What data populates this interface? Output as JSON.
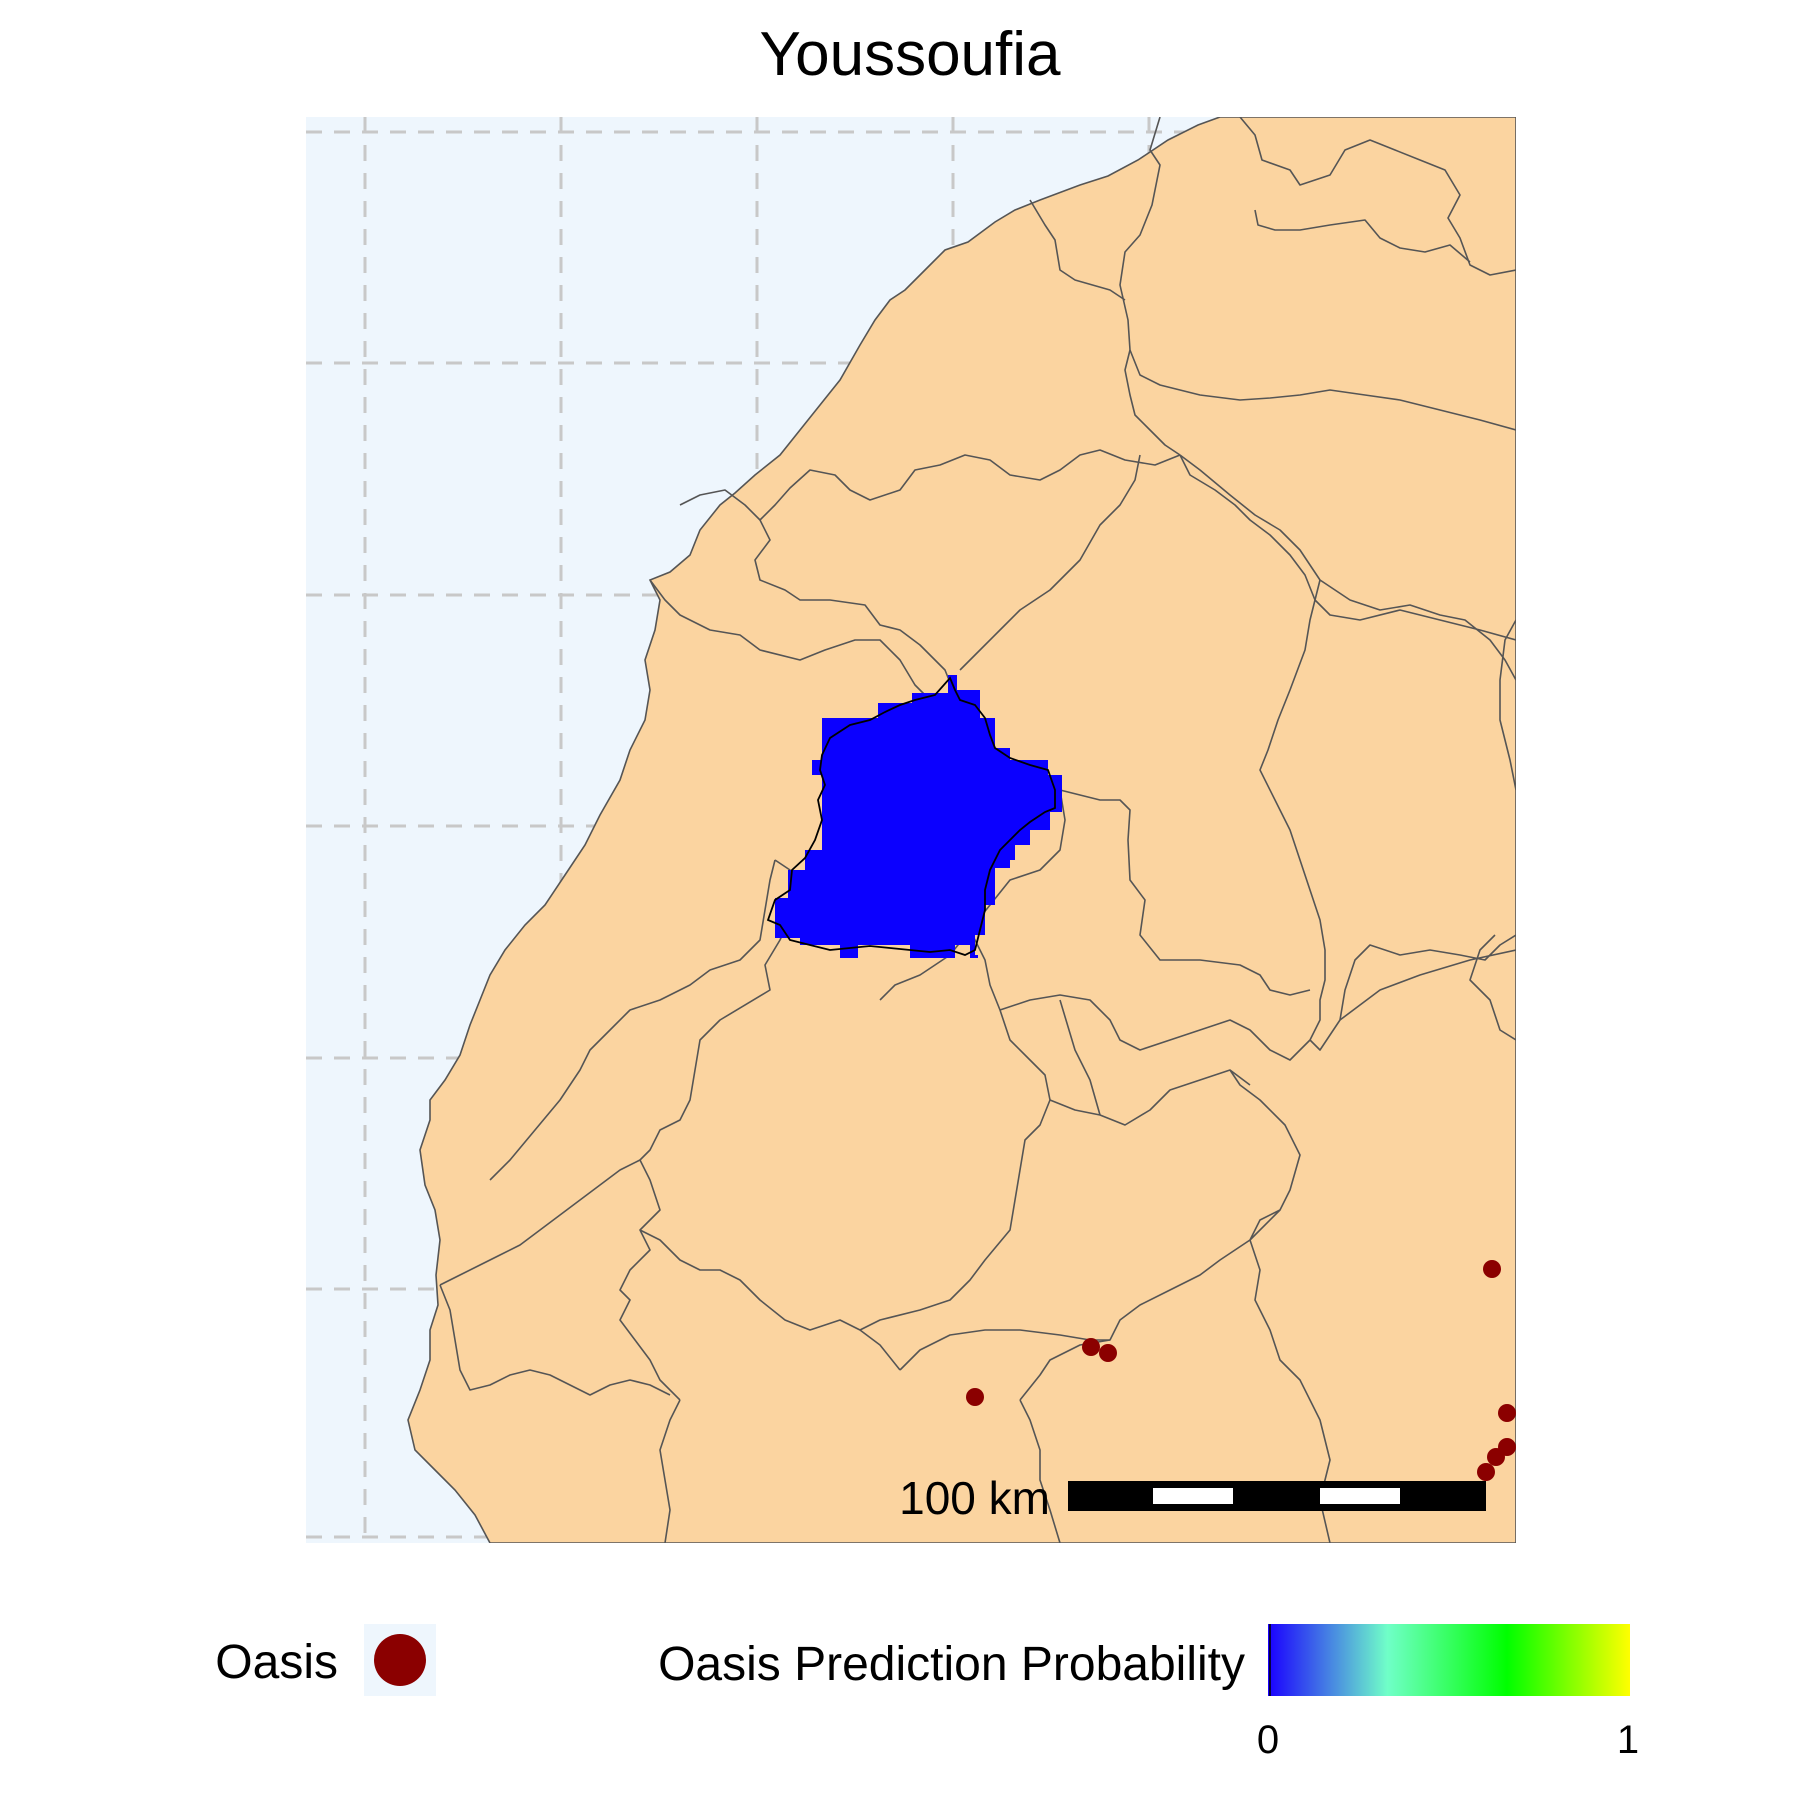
{
  "title": "Youssoufia",
  "colors": {
    "sea": "#eef6fd",
    "land": "#fbd4a0",
    "border": "#555555",
    "grid": "#c8c8c8",
    "prediction_fill": "#0b00ff",
    "oasis_point": "#8b0000",
    "highlight_outline": "#000000"
  },
  "scalebar": {
    "label": "100 km"
  },
  "legend": {
    "oasis_label": "Oasis",
    "oasis_symbol": "filled-circle",
    "probability_label": "Oasis Prediction Probability",
    "probability_min": "0",
    "probability_max": "1",
    "gradient_colors": [
      "#1a00ff",
      "#70ffc8",
      "#00ff00",
      "#ffff00"
    ]
  },
  "prediction": {
    "region": "Youssoufia",
    "probability": 0.02
  },
  "oasis_points": [
    {
      "id": "oasis-1"
    },
    {
      "id": "oasis-2"
    },
    {
      "id": "oasis-3"
    },
    {
      "id": "oasis-4"
    },
    {
      "id": "oasis-5"
    },
    {
      "id": "oasis-6"
    },
    {
      "id": "oasis-7"
    },
    {
      "id": "oasis-8"
    }
  ]
}
